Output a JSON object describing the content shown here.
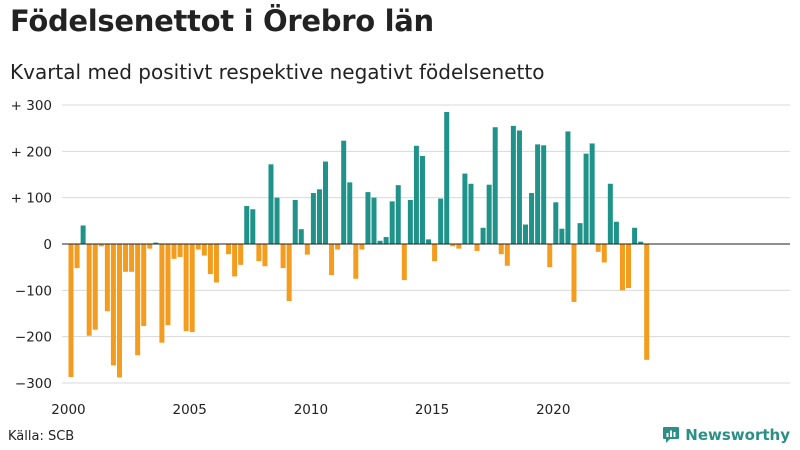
{
  "header": {
    "title": "Födelsenettot i Örebro län",
    "subtitle": "Kvartal med positivt respektive negativt födelsenetto"
  },
  "footer": {
    "source": "Källa: SCB",
    "brand": "Newsworthy"
  },
  "colors": {
    "positive": "#1f9389",
    "negative": "#f39c1e",
    "grid": "#d9d9d9",
    "brand": "#2b8f85"
  },
  "chart_data": {
    "type": "bar",
    "title": "Födelsenettot i Örebro län",
    "subtitle": "Kvartal med positivt respektive negativt födelsenetto",
    "xlabel": "",
    "ylabel": "",
    "ylim": [
      -300,
      300
    ],
    "y_ticks": [
      300,
      200,
      100,
      0,
      -100,
      -200,
      -300
    ],
    "y_tick_labels": [
      "+ 300",
      "+ 200",
      "+ 100",
      "0",
      "−100",
      "−200",
      "−300"
    ],
    "x_tick_labels": [
      {
        "year": 2000,
        "label": "2000"
      },
      {
        "year": 2005,
        "label": "2005"
      },
      {
        "year": 2010,
        "label": "2010"
      },
      {
        "year": 2015,
        "label": "2015"
      },
      {
        "year": 2020,
        "label": "2020"
      }
    ],
    "start_year": 2000,
    "periods_per_year": 4,
    "values": [
      -287,
      -52,
      40,
      -198,
      -185,
      -5,
      -145,
      -262,
      -288,
      -60,
      -60,
      -240,
      -177,
      -10,
      3,
      -213,
      -175,
      -32,
      -28,
      -188,
      -190,
      -12,
      -25,
      -65,
      -83,
      0,
      -22,
      -70,
      -45,
      82,
      75,
      -37,
      -48,
      172,
      100,
      -52,
      -123,
      95,
      32,
      -23,
      110,
      118,
      178,
      -67,
      -12,
      223,
      133,
      -75,
      -12,
      112,
      100,
      7,
      15,
      92,
      127,
      -78,
      95,
      212,
      190,
      10,
      -37,
      98,
      285,
      -5,
      -10,
      152,
      130,
      -15,
      35,
      128,
      252,
      -22,
      -47,
      255,
      245,
      42,
      110,
      215,
      213,
      -50,
      90,
      33,
      243,
      -125,
      45,
      195,
      217,
      -17,
      -40,
      130,
      48,
      -100,
      -95,
      35,
      5,
      -250
    ]
  }
}
